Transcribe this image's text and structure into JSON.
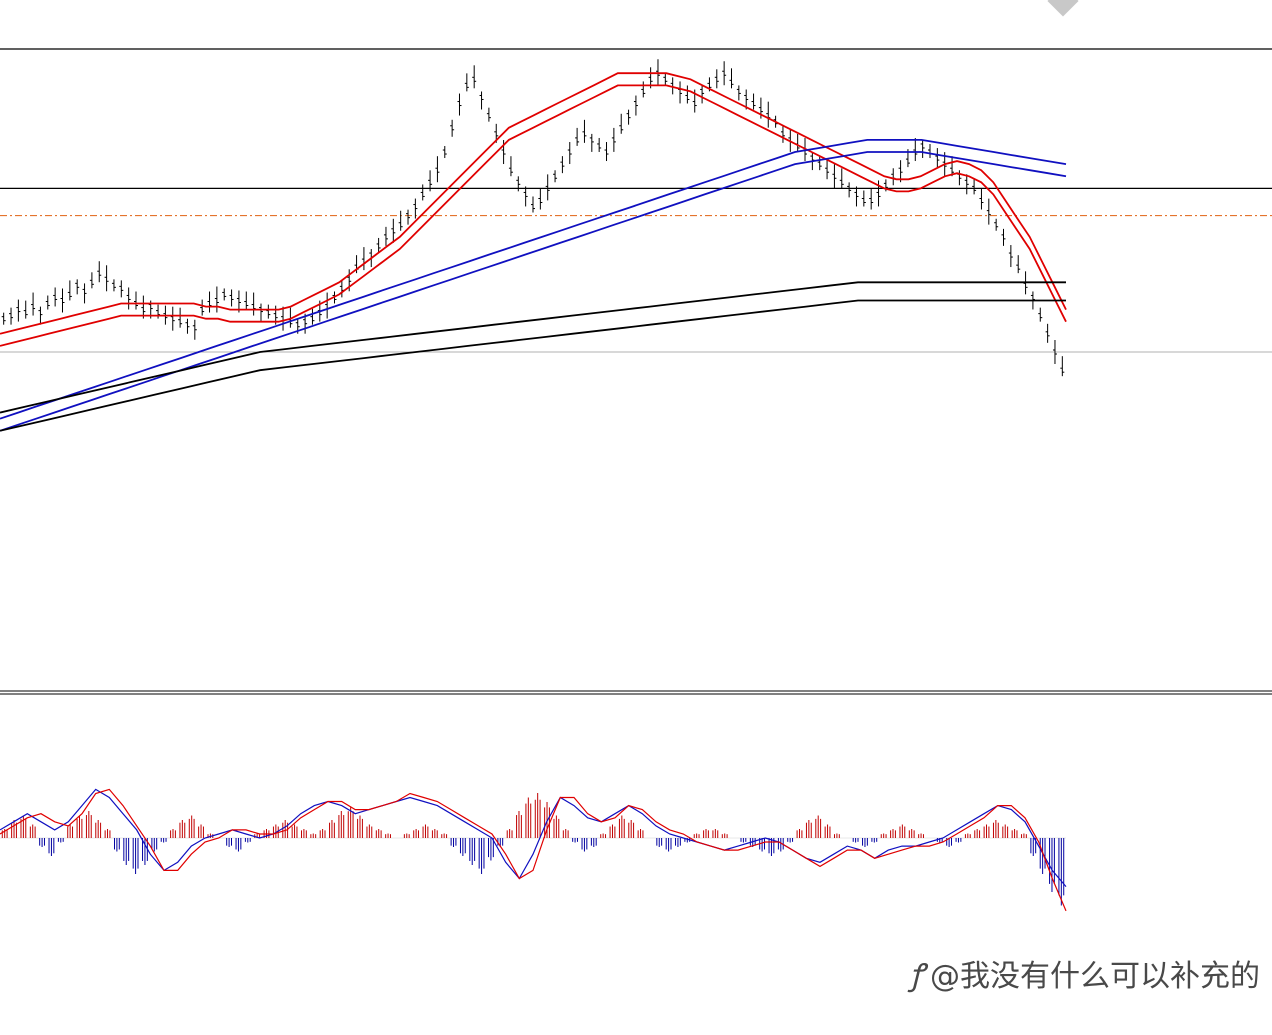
{
  "chart_data": [
    {
      "type": "line",
      "panel": "price",
      "series": [
        {
          "role": "price-bars",
          "color": "#000000",
          "values": [
            11,
            12,
            14,
            13,
            15,
            13,
            16,
            18,
            17,
            19,
            22,
            20,
            23,
            26,
            24,
            22,
            21,
            18,
            16,
            14,
            15,
            13,
            12,
            11,
            10,
            9,
            8,
            14,
            16,
            17,
            19,
            18,
            17,
            16,
            15,
            14,
            13,
            12,
            11,
            10,
            9,
            10,
            11,
            13,
            15,
            18,
            21,
            24,
            28,
            30,
            32,
            35,
            38,
            40,
            42,
            45,
            48,
            52,
            56,
            60,
            66,
            74,
            82,
            88,
            90,
            84,
            78,
            72,
            66,
            60,
            56,
            52,
            48,
            50,
            54,
            58,
            62,
            66,
            70,
            72,
            70,
            68,
            66,
            70,
            74,
            78,
            82,
            86,
            90,
            92,
            90,
            88,
            86,
            84,
            82,
            86,
            88,
            90,
            92,
            89,
            86,
            84,
            82,
            80,
            78,
            76,
            72,
            70,
            68,
            66,
            64,
            62,
            60,
            58,
            56,
            54,
            52,
            50,
            50,
            52,
            55,
            58,
            60,
            63,
            66,
            68,
            66,
            64,
            62,
            60,
            58,
            56,
            54,
            50,
            46,
            42,
            38,
            32,
            28,
            22,
            18,
            12,
            6,
            0,
            -6
          ]
        },
        {
          "role": "ma-red-upper",
          "color": "#e00000",
          "values": [
            6,
            7,
            8,
            9,
            10,
            11,
            12,
            13,
            14,
            15,
            16,
            16,
            16,
            16,
            16,
            16,
            16,
            15,
            15,
            14,
            14,
            14,
            14,
            14,
            15,
            17,
            19,
            21,
            23,
            26,
            29,
            32,
            35,
            38,
            42,
            46,
            50,
            54,
            58,
            62,
            66,
            70,
            74,
            76,
            78,
            80,
            82,
            84,
            86,
            88,
            90,
            92,
            92,
            92,
            92,
            92,
            91,
            90,
            88,
            86,
            84,
            82,
            80,
            78,
            76,
            74,
            72,
            70,
            68,
            66,
            64,
            62,
            60,
            58,
            57,
            57,
            58,
            60,
            62,
            63,
            62,
            60,
            56,
            50,
            44,
            38,
            30,
            22,
            14
          ]
        },
        {
          "role": "ma-red-lower",
          "color": "#e00000",
          "values": [
            2,
            3,
            4,
            5,
            6,
            7,
            8,
            9,
            10,
            11,
            12,
            12,
            12,
            12,
            12,
            12,
            12,
            11,
            11,
            10,
            10,
            10,
            10,
            10,
            11,
            13,
            15,
            17,
            19,
            22,
            25,
            28,
            31,
            34,
            38,
            42,
            46,
            50,
            54,
            58,
            62,
            66,
            70,
            72,
            74,
            76,
            78,
            80,
            82,
            84,
            86,
            88,
            88,
            88,
            88,
            88,
            87,
            86,
            84,
            82,
            80,
            78,
            76,
            74,
            72,
            70,
            68,
            66,
            64,
            62,
            60,
            58,
            56,
            54,
            53,
            53,
            54,
            56,
            58,
            59,
            58,
            56,
            52,
            46,
            40,
            34,
            26,
            18,
            10
          ]
        },
        {
          "role": "ma-blue-upper",
          "color": "#1010c0",
          "values": [
            -22,
            -20,
            -18,
            -16,
            -14,
            -12,
            -10,
            -8,
            -6,
            -4,
            -2,
            0,
            2,
            4,
            6,
            8,
            10,
            12,
            14,
            16,
            18,
            20,
            22,
            24,
            26,
            28,
            30,
            32,
            34,
            36,
            38,
            40,
            42,
            44,
            46,
            48,
            50,
            52,
            54,
            56,
            58,
            60,
            62,
            64,
            66,
            67,
            68,
            69,
            70,
            70,
            70,
            70,
            69,
            68,
            67,
            66,
            65,
            64,
            63,
            62
          ]
        },
        {
          "role": "ma-blue-lower",
          "color": "#1010c0",
          "values": [
            -26,
            -24,
            -22,
            -20,
            -18,
            -16,
            -14,
            -12,
            -10,
            -8,
            -6,
            -4,
            -2,
            0,
            2,
            4,
            6,
            8,
            10,
            12,
            14,
            16,
            18,
            20,
            22,
            24,
            26,
            28,
            30,
            32,
            34,
            36,
            38,
            40,
            42,
            44,
            46,
            48,
            50,
            52,
            54,
            56,
            58,
            60,
            62,
            63,
            64,
            65,
            66,
            66,
            66,
            66,
            65,
            64,
            63,
            62,
            61,
            60,
            59,
            58
          ]
        },
        {
          "role": "ma-black-upper",
          "color": "#000000",
          "values": [
            -20,
            -18,
            -16,
            -14,
            -12,
            -10,
            -8,
            -6,
            -4,
            -2,
            0,
            1,
            2,
            3,
            4,
            5,
            6,
            7,
            8,
            9,
            10,
            11,
            12,
            13,
            14,
            15,
            16,
            17,
            18,
            19,
            20,
            21,
            22,
            23,
            23,
            23,
            23,
            23,
            23,
            23,
            23,
            23
          ]
        },
        {
          "role": "ma-black-lower",
          "color": "#000000",
          "values": [
            -26,
            -24,
            -22,
            -20,
            -18,
            -16,
            -14,
            -12,
            -10,
            -8,
            -6,
            -5,
            -4,
            -3,
            -2,
            -1,
            0,
            1,
            2,
            3,
            4,
            5,
            6,
            7,
            8,
            9,
            10,
            11,
            12,
            13,
            14,
            15,
            16,
            17,
            17,
            17,
            17,
            17,
            17,
            17,
            17,
            17
          ]
        }
      ],
      "hlines": [
        {
          "role": "resistance",
          "color": "#000000",
          "value": 100,
          "style": "solid"
        },
        {
          "role": "support",
          "color": "#000000",
          "value": 54,
          "style": "solid"
        },
        {
          "role": "dashed-level",
          "color": "#e06010",
          "value": 45,
          "style": "dash-dot"
        },
        {
          "role": "last-price",
          "color": "#b0b0b0",
          "value": 0,
          "style": "solid"
        }
      ]
    },
    {
      "type": "bar",
      "panel": "macd",
      "series": [
        {
          "role": "histogram",
          "positive_color": "#c00000",
          "negative_color": "#0000a0",
          "values": [
            2,
            4,
            5,
            3,
            -2,
            -4,
            -1,
            3,
            5,
            6,
            4,
            2,
            -3,
            -6,
            -8,
            -6,
            -3,
            -1,
            2,
            4,
            5,
            3,
            1,
            0,
            -2,
            -3,
            -1,
            1,
            2,
            3,
            4,
            3,
            2,
            1,
            2,
            4,
            6,
            7,
            5,
            3,
            2,
            1,
            0,
            1,
            2,
            3,
            2,
            1,
            -2,
            -4,
            -6,
            -8,
            -5,
            -2,
            2,
            6,
            9,
            10,
            8,
            5,
            2,
            -1,
            -3,
            -2,
            1,
            3,
            5,
            4,
            2,
            0,
            -2,
            -3,
            -2,
            -1,
            1,
            2,
            2,
            1,
            0,
            -1,
            -2,
            -3,
            -4,
            -3,
            -1,
            2,
            4,
            5,
            3,
            1,
            0,
            -1,
            -2,
            -1,
            1,
            2,
            3,
            2,
            1,
            0,
            -1,
            -2,
            -1,
            1,
            2,
            3,
            4,
            3,
            2,
            1,
            -4,
            -8,
            -12,
            -15
          ]
        },
        {
          "role": "macd-line",
          "color": "#1010c0",
          "values": [
            2,
            4,
            6,
            4,
            2,
            4,
            8,
            12,
            10,
            6,
            2,
            -4,
            -8,
            -6,
            -2,
            0,
            1,
            2,
            1,
            0,
            1,
            3,
            6,
            8,
            9,
            8,
            6,
            7,
            8,
            9,
            10,
            9,
            8,
            6,
            4,
            2,
            0,
            -6,
            -10,
            -4,
            4,
            10,
            8,
            5,
            4,
            6,
            8,
            6,
            3,
            1,
            0,
            -1,
            -2,
            -3,
            -2,
            -1,
            0,
            -1,
            -3,
            -5,
            -6,
            -4,
            -2,
            -3,
            -5,
            -3,
            -2,
            -2,
            -1,
            0,
            2,
            4,
            6,
            8,
            7,
            4,
            -2,
            -8,
            -12
          ]
        },
        {
          "role": "signal-line",
          "color": "#e00000",
          "values": [
            1,
            3,
            5,
            6,
            4,
            3,
            6,
            11,
            12,
            8,
            3,
            -2,
            -8,
            -8,
            -4,
            -1,
            0,
            2,
            2,
            1,
            1,
            2,
            5,
            7,
            9,
            9,
            7,
            7,
            8,
            9,
            11,
            10,
            9,
            7,
            5,
            3,
            1,
            -4,
            -10,
            -8,
            2,
            10,
            10,
            6,
            4,
            5,
            8,
            7,
            4,
            2,
            1,
            -1,
            -2,
            -3,
            -3,
            -2,
            -1,
            -1,
            -3,
            -5,
            -7,
            -5,
            -3,
            -3,
            -5,
            -4,
            -3,
            -2,
            -2,
            -1,
            1,
            3,
            5,
            8,
            8,
            5,
            -1,
            -10,
            -18
          ]
        }
      ],
      "zero_line": true
    }
  ],
  "watermark": {
    "logo_glyph": "ꝭ",
    "text": "@我没有什么可以补充的"
  }
}
